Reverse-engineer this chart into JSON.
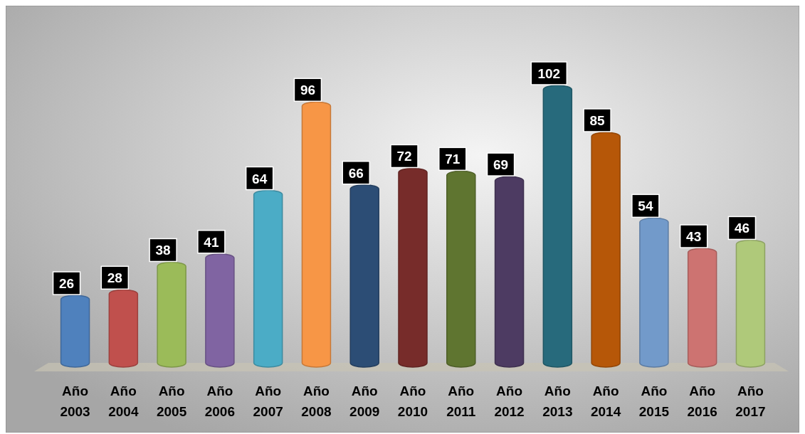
{
  "chart_data": {
    "type": "bar",
    "data_labels": true,
    "categories": [
      "Año 2003",
      "Año 2004",
      "Año 2005",
      "Año 2006",
      "Año 2007",
      "Año 2008",
      "Año 2009",
      "Año 2010",
      "Año 2011",
      "Año 2012",
      "Año 2013",
      "Año 2014",
      "Año 2015",
      "Año 2016",
      "Año 2017"
    ],
    "values": [
      26,
      28,
      38,
      41,
      64,
      96,
      66,
      72,
      71,
      69,
      102,
      85,
      54,
      43,
      46
    ],
    "colors": [
      "#4f81bd",
      "#c0504d",
      "#9bbb59",
      "#8064a2",
      "#4bacc6",
      "#f79646",
      "#2c4d75",
      "#772c2a",
      "#5f7530",
      "#4d3b62",
      "#276a7c",
      "#b65708",
      "#729aca",
      "#cd7371",
      "#afc97a"
    ]
  }
}
